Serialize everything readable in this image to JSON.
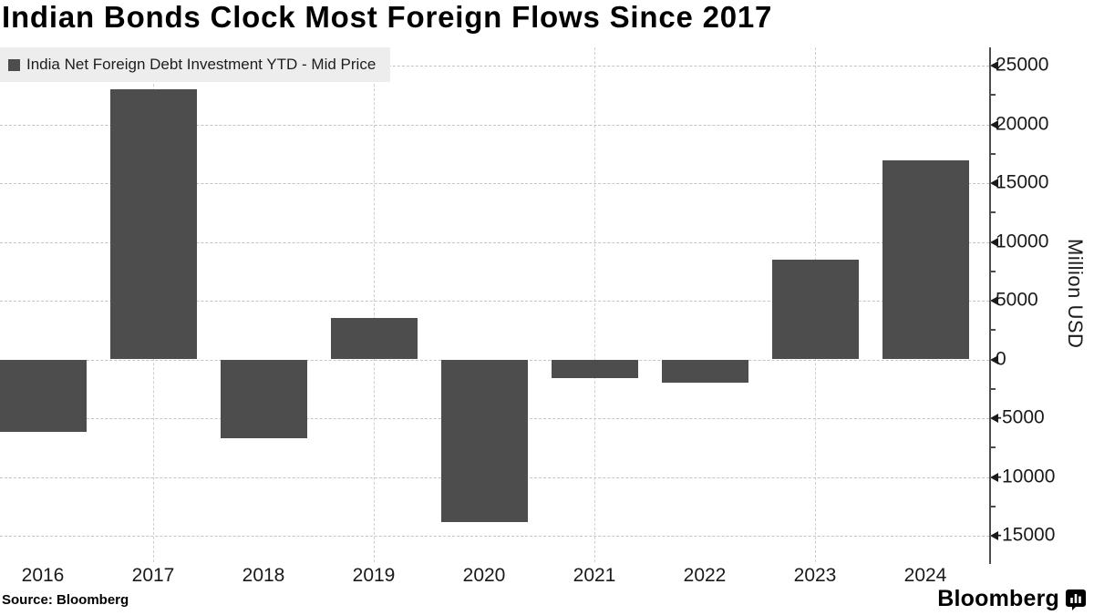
{
  "title": "Indian Bonds Clock Most Foreign Flows Since 2017",
  "legend": {
    "label": "India Net Foreign Debt Investment YTD - Mid Price"
  },
  "source": "Source: Bloomberg",
  "brand": {
    "name": "Bloomberg",
    "icon": "bar-chart-bubble-icon"
  },
  "y_axis": {
    "title": "Million USD"
  },
  "colors": {
    "bar": "#4d4d4d",
    "grid": "#c4c4c4",
    "axis": "#4d4d4d",
    "legend_bg": "#ededed",
    "text": "#1a1a1a"
  },
  "chart_data": {
    "type": "bar",
    "title": "Indian Bonds Clock Most Foreign Flows Since 2017",
    "series_name": "India Net Foreign Debt Investment YTD - Mid Price",
    "categories": [
      "2016",
      "2017",
      "2018",
      "2019",
      "2020",
      "2021",
      "2022",
      "2023",
      "2024"
    ],
    "values": [
      -6200,
      23000,
      -6700,
      3500,
      -13800,
      -1600,
      -2000,
      8500,
      16900
    ],
    "xlabel": "",
    "ylabel": "Million USD",
    "ylim": [
      -17400,
      26500
    ],
    "yticks": [
      -15000,
      -10000,
      -5000,
      0,
      5000,
      10000,
      15000,
      20000,
      25000
    ],
    "minor_yticks": [
      -12500,
      -7500,
      -2500,
      2500,
      7500,
      12500,
      17500,
      22500
    ],
    "vertical_gridline_categories": [
      "2017",
      "2019",
      "2021",
      "2023"
    ],
    "grid": true,
    "legend_position": "top-left",
    "axis_side": "right"
  }
}
